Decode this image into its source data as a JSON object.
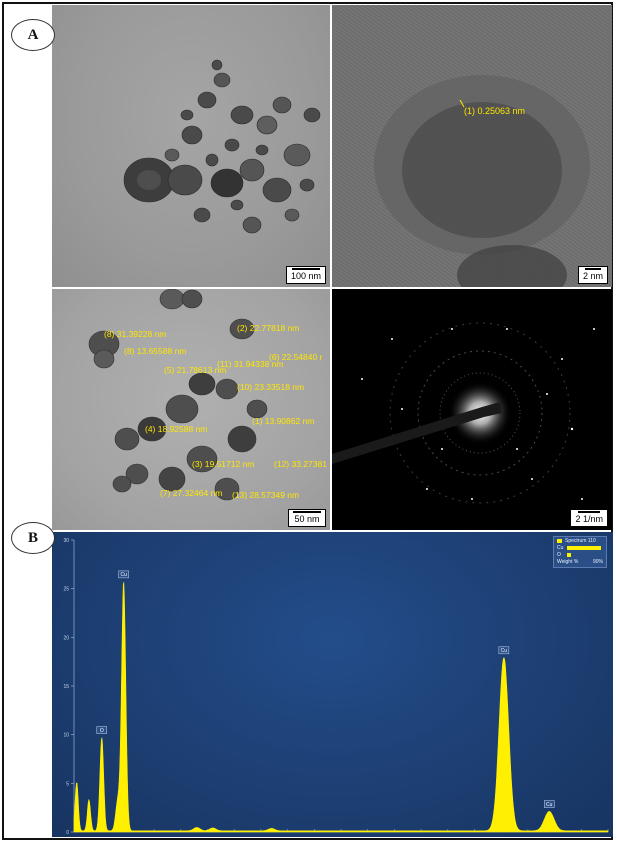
{
  "panel_labels": {
    "a": "A",
    "b": "B"
  },
  "tem_low_mag": {
    "scale_bar": "100 nm"
  },
  "hrtem": {
    "spacing_label": "(1)  0.25063 nm",
    "scale_bar": "2 nm"
  },
  "tem_sizes": {
    "scale_bar": "50 nm",
    "measurements": [
      "(8)  31.39228 nm",
      "(8)  13.65588 nm",
      "(2)  22.77818 nm",
      "(6)  22.54840 r",
      "(5)  21.78613 nm",
      "(11)  31.94338 nm",
      "(10)  23.33518 nm",
      "(1)  13.90862 nm",
      "(4)  18.92588 nm",
      "(3)  19.51712 nm",
      "(12)  33.27381",
      "(7)  27.32464 nm",
      "(13)  28.57349 nm"
    ]
  },
  "saed": {
    "scale_bar": "2 1/nm"
  },
  "chart_data": {
    "type": "line",
    "title": "",
    "xlabel": "",
    "ylabel": "",
    "ylim": [
      0,
      30
    ],
    "xlim": [
      0,
      10
    ],
    "y_ticks": [
      0,
      5,
      10,
      15,
      20,
      25,
      30
    ],
    "legend": {
      "position": "top-right",
      "title": "Spectrum 110",
      "entries": [
        {
          "name": "Cu",
          "value": 90
        },
        {
          "name": "O",
          "value": 10
        }
      ],
      "scale_label": "Weight %",
      "scale_max": "90%"
    },
    "peak_labels": [
      {
        "label": "O",
        "x": 0.52,
        "y": 9.8
      },
      {
        "label": "Cu",
        "x": 0.93,
        "y": 25.8
      },
      {
        "label": "Cu",
        "x": 8.05,
        "y": 18.0
      },
      {
        "label": "Cu",
        "x": 8.9,
        "y": 2.2
      }
    ],
    "series": [
      {
        "color": "#ffef00",
        "peaks": [
          {
            "x": 0.05,
            "height": 5.0,
            "width": 0.03
          },
          {
            "x": 0.28,
            "height": 3.2,
            "width": 0.03
          },
          {
            "x": 0.52,
            "height": 9.6,
            "width": 0.035
          },
          {
            "x": 0.82,
            "height": 3.0,
            "width": 0.04
          },
          {
            "x": 0.93,
            "height": 25.6,
            "width": 0.04
          },
          {
            "x": 2.3,
            "height": 0.35,
            "width": 0.06
          },
          {
            "x": 2.6,
            "height": 0.3,
            "width": 0.06
          },
          {
            "x": 3.7,
            "height": 0.25,
            "width": 0.06
          },
          {
            "x": 8.05,
            "height": 17.8,
            "width": 0.09
          },
          {
            "x": 8.9,
            "height": 2.0,
            "width": 0.09
          }
        ]
      }
    ]
  }
}
